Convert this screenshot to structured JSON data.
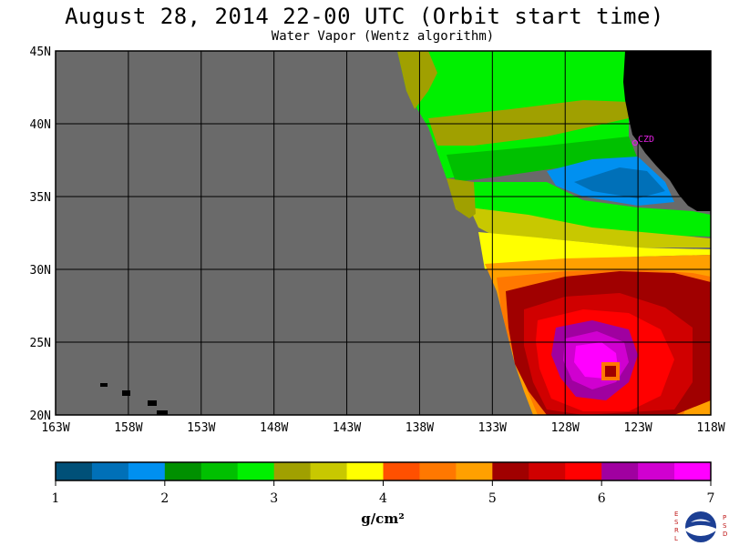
{
  "title": "August 28, 2014  22-00 UTC  (Orbit start time)",
  "subtitle": "Water Vapor (Wentz algorithm)",
  "map": {
    "lon_ticks": [
      "163W",
      "158W",
      "153W",
      "148W",
      "143W",
      "138W",
      "133W",
      "128W",
      "123W",
      "118W"
    ],
    "lat_ticks": [
      "45N",
      "40N",
      "35N",
      "30N",
      "25N",
      "20N"
    ],
    "lon_range": [
      -163,
      -118
    ],
    "lat_range": [
      20,
      45
    ],
    "station_label": "CZD",
    "colors": {
      "no_data": "#6a6a6a",
      "land": "#000000",
      "grid": "#000000",
      "station": "#e020e0"
    }
  },
  "colorbar": {
    "ticks": [
      "1",
      "2",
      "3",
      "4",
      "5",
      "6",
      "7"
    ],
    "range": [
      1,
      7
    ],
    "units": "g/cm²",
    "colors": [
      "#005078",
      "#0070b8",
      "#0090f0",
      "#009000",
      "#00c000",
      "#00f000",
      "#a0a000",
      "#c8c800",
      "#ffff00",
      "#ff5000",
      "#ff7800",
      "#ffa000",
      "#a00000",
      "#d00000",
      "#ff0000",
      "#a000a0",
      "#d000d0",
      "#ff00ff"
    ]
  },
  "logo": {
    "left_letters": "ESRL",
    "right_letters": "PSD",
    "name": "NOAA"
  }
}
